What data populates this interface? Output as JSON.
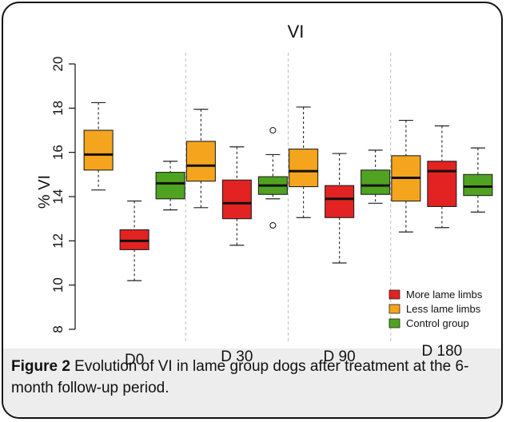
{
  "caption": {
    "label": "Figure 2",
    "text": " Evolution of VI in lame group dogs after treatment at the 6-month follow-up period."
  },
  "chart_data": {
    "type": "boxplot",
    "title": "VI",
    "ylabel": "% VI",
    "xlabel": "",
    "ylim": [
      8,
      20
    ],
    "yticks": [
      8,
      10,
      12,
      14,
      16,
      18,
      20
    ],
    "grid": false,
    "legend_position": "bottom-right",
    "groups": [
      "D0",
      "D 30",
      "D 90",
      "D 180"
    ],
    "series": [
      {
        "name": "More lame limbs",
        "color": "#e32222"
      },
      {
        "name": "Less lame limbs",
        "color": "#f5a51d"
      },
      {
        "name": "Control group",
        "color": "#4fa320"
      }
    ],
    "boxes": [
      {
        "group": "D0",
        "series": "Less lame limbs",
        "min": 14.3,
        "q1": 15.2,
        "median": 15.9,
        "q3": 17.0,
        "max": 18.25,
        "outliers": []
      },
      {
        "group": "D0",
        "series": "More lame limbs",
        "min": 10.2,
        "q1": 11.6,
        "median": 12.0,
        "q3": 12.5,
        "max": 13.8,
        "outliers": []
      },
      {
        "group": "D0",
        "series": "Control group",
        "min": 13.4,
        "q1": 13.9,
        "median": 14.6,
        "q3": 15.1,
        "max": 15.6,
        "outliers": []
      },
      {
        "group": "D 30",
        "series": "Less lame limbs",
        "min": 13.5,
        "q1": 14.7,
        "median": 15.4,
        "q3": 16.5,
        "max": 17.95,
        "outliers": []
      },
      {
        "group": "D 30",
        "series": "More lame limbs",
        "min": 11.8,
        "q1": 13.0,
        "median": 13.7,
        "q3": 14.75,
        "max": 16.25,
        "outliers": []
      },
      {
        "group": "D 30",
        "series": "Control group",
        "min": 13.9,
        "q1": 14.1,
        "median": 14.5,
        "q3": 14.9,
        "max": 15.9,
        "outliers": [
          17.0,
          12.7
        ]
      },
      {
        "group": "D 90",
        "series": "Less lame limbs",
        "min": 13.05,
        "q1": 14.45,
        "median": 15.15,
        "q3": 16.15,
        "max": 18.05,
        "outliers": []
      },
      {
        "group": "D 90",
        "series": "More lame limbs",
        "min": 11.0,
        "q1": 13.05,
        "median": 13.9,
        "q3": 14.5,
        "max": 15.95,
        "outliers": []
      },
      {
        "group": "D 90",
        "series": "Control group",
        "min": 13.7,
        "q1": 14.1,
        "median": 14.5,
        "q3": 15.2,
        "max": 16.1,
        "outliers": []
      },
      {
        "group": "D 180",
        "series": "Less lame limbs",
        "min": 12.4,
        "q1": 13.8,
        "median": 14.85,
        "q3": 15.85,
        "max": 17.45,
        "outliers": []
      },
      {
        "group": "D 180",
        "series": "More lame limbs",
        "min": 12.6,
        "q1": 13.55,
        "median": 15.15,
        "q3": 15.6,
        "max": 17.2,
        "outliers": []
      },
      {
        "group": "D 180",
        "series": "Control group",
        "min": 13.3,
        "q1": 14.05,
        "median": 14.45,
        "q3": 15.0,
        "max": 16.2,
        "outliers": []
      }
    ]
  }
}
